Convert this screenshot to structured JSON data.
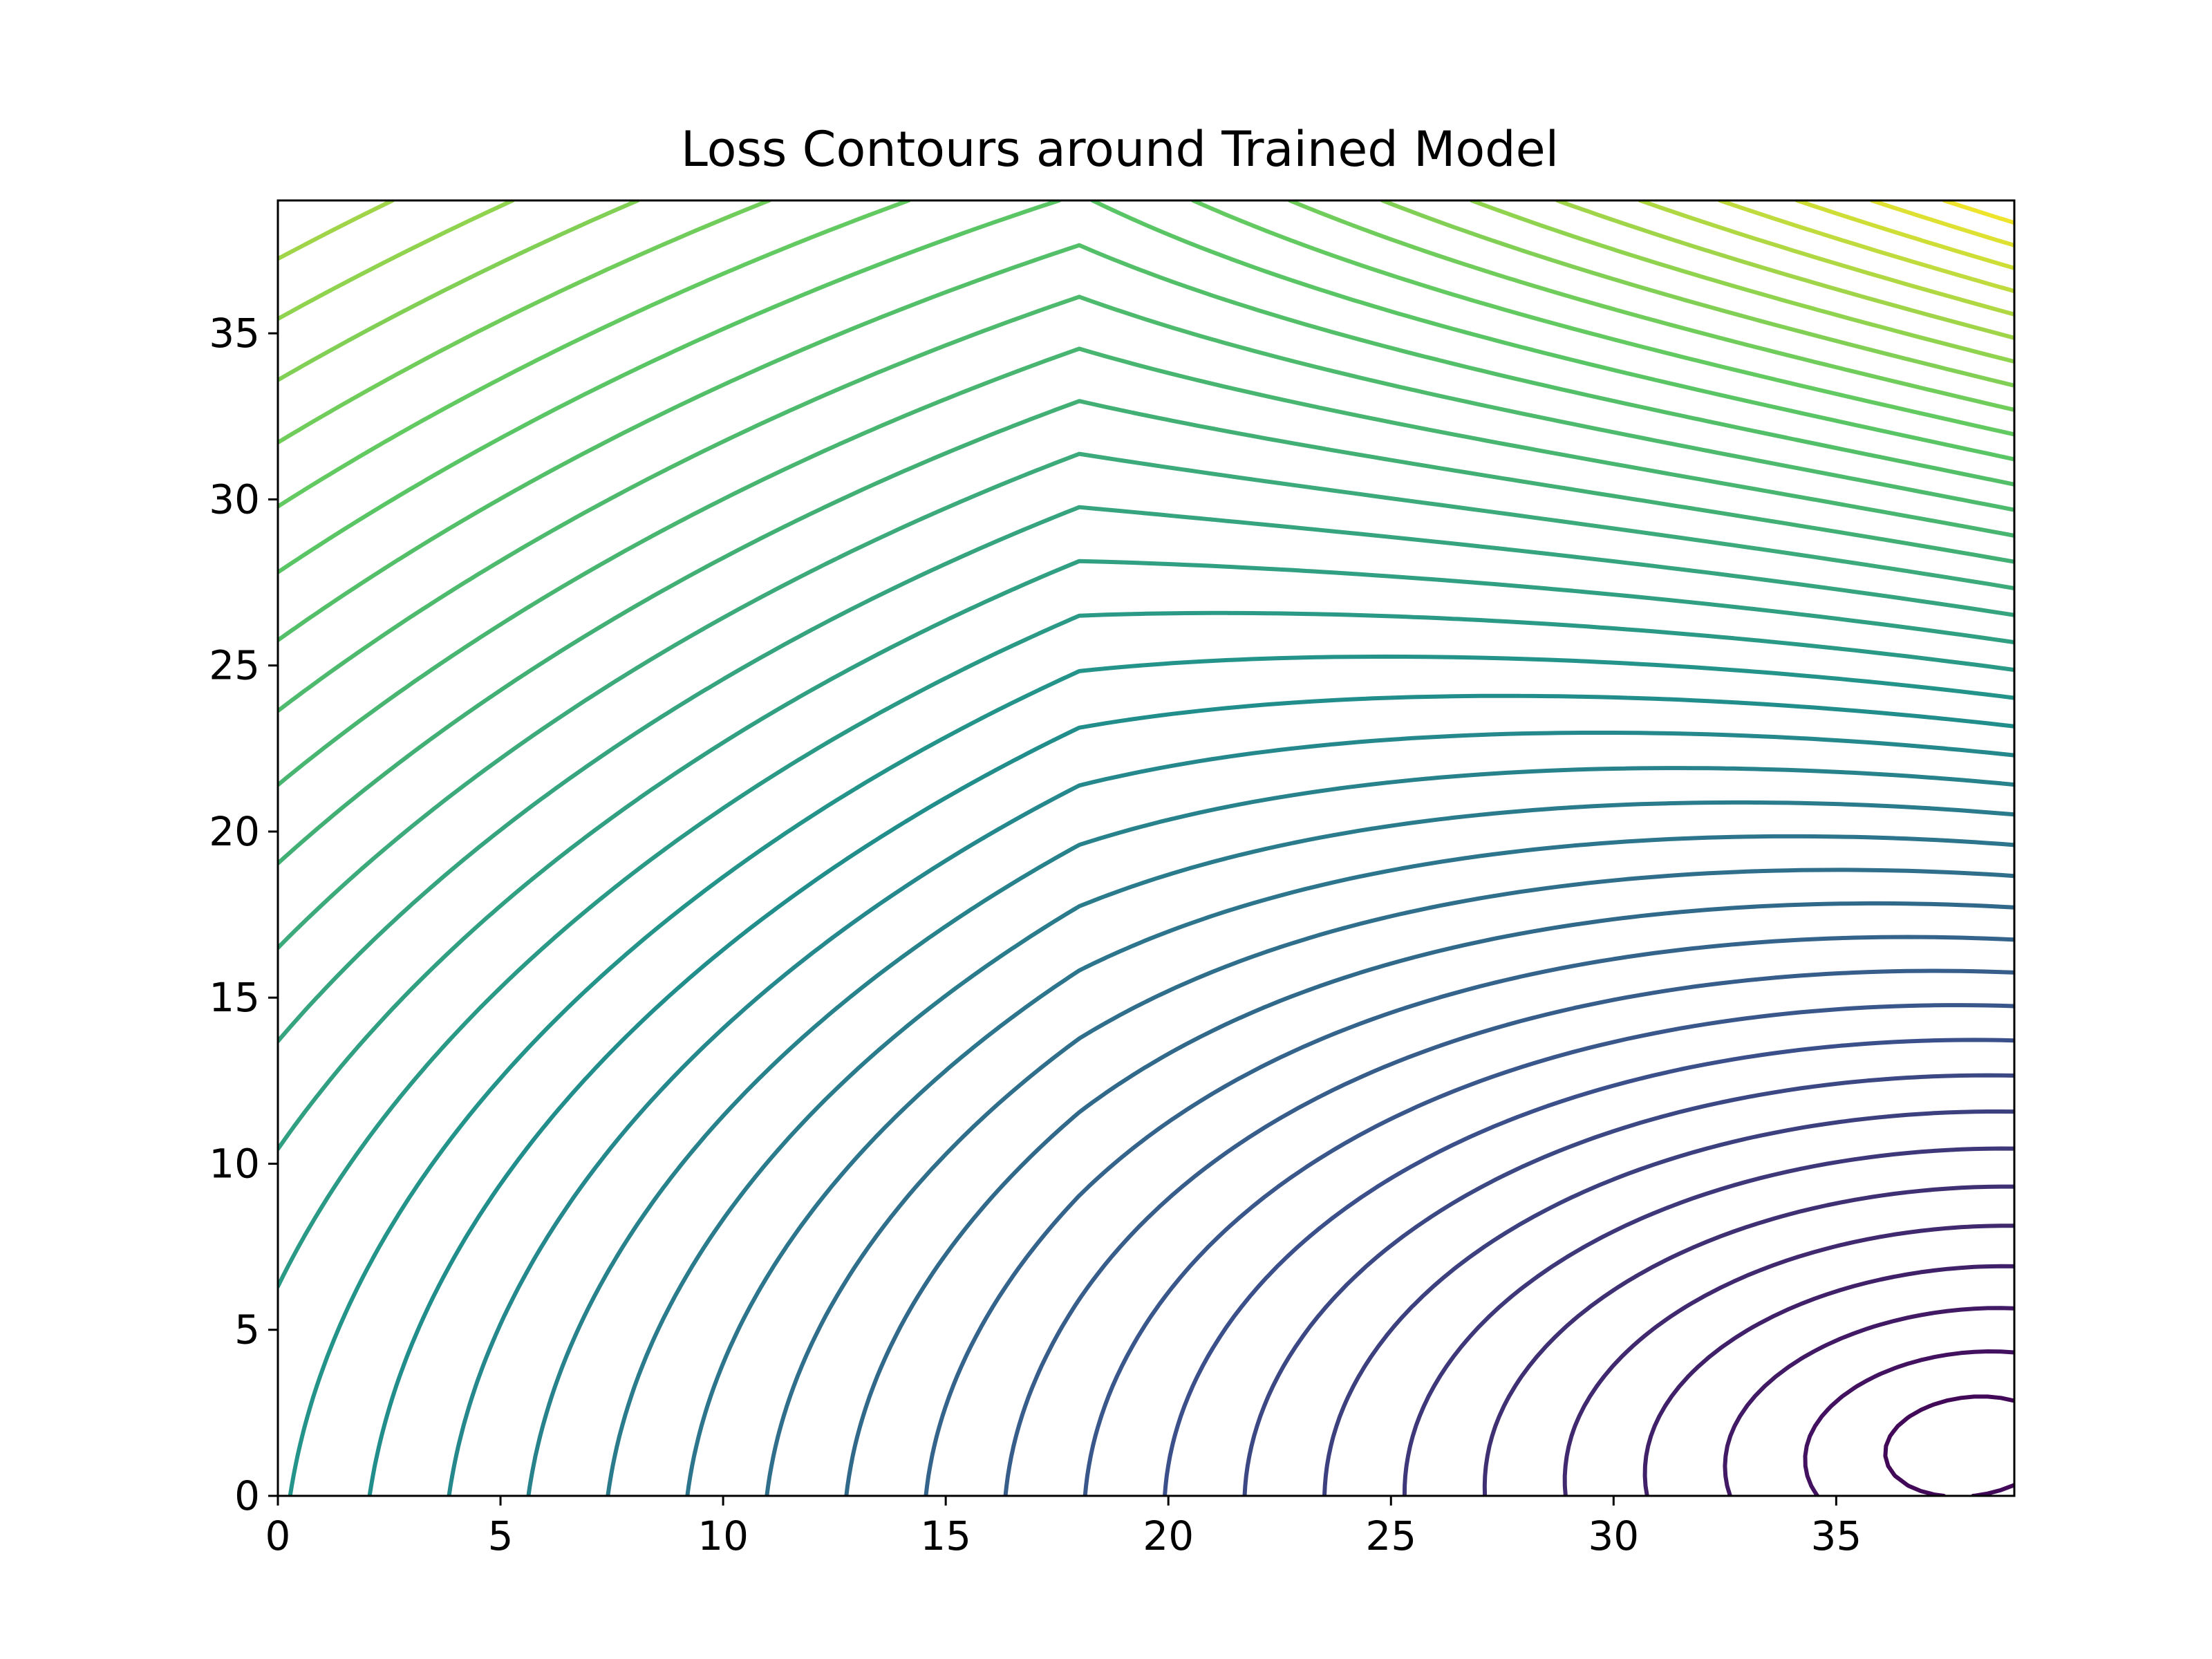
{
  "chart_data": {
    "type": "contour",
    "title": "Loss Contours around Trained Model",
    "xlabel": "",
    "ylabel": "",
    "xlim": [
      0,
      39
    ],
    "ylim": [
      0,
      39
    ],
    "xticks": [
      0,
      5,
      10,
      15,
      20,
      25,
      30,
      35
    ],
    "yticks": [
      0,
      5,
      10,
      15,
      20,
      25,
      30,
      35
    ],
    "grid": false,
    "colormap": "viridis",
    "colormap_stops": [
      "#440154",
      "#3b528b",
      "#21918c",
      "#5ec962",
      "#fde725"
    ],
    "minimum": {
      "x": 38,
      "y": 1.5
    },
    "contour_levels": 40,
    "lowest_contour_x_extent": [
      35.2,
      39
    ],
    "lowest_contour_y_extent": [
      0,
      4.4
    ],
    "contour_bottom_crossings_x": [
      0,
      1,
      2,
      3.3,
      4.5,
      5.8,
      7,
      8.3,
      9.6,
      11.1,
      12.6,
      14.2,
      15.9,
      17.6,
      19.4,
      21.4,
      23.5,
      26.2,
      28.9,
      32.5,
      36.9
    ],
    "contour_left_crossings_y": [
      4,
      13,
      17.2,
      20,
      22.2,
      24.1,
      25.8,
      27.4,
      28.8,
      30,
      31.3,
      32.5,
      33.6,
      34.7,
      35.8,
      36.9,
      37.9,
      38.8
    ]
  }
}
